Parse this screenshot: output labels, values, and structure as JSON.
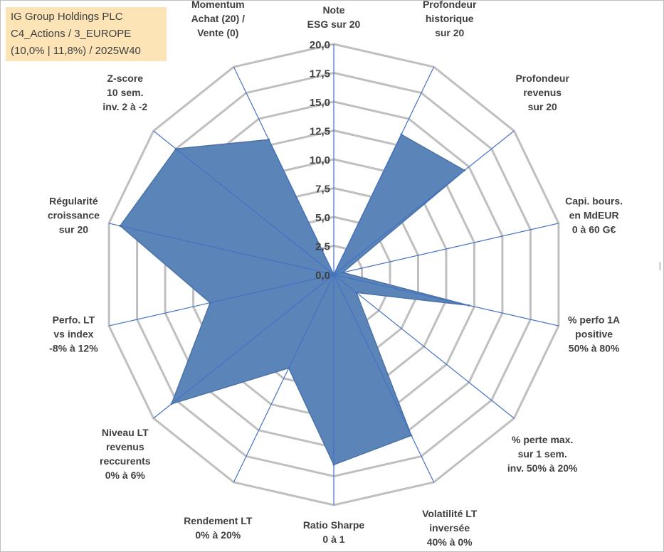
{
  "title_box": {
    "line1": "IG Group Holdings PLC",
    "line2": "C4_Actions / 3_EUROPE",
    "line3": "(10,0% | 11,8%) / 2025W40"
  },
  "chart_data": {
    "type": "radar",
    "title": "IG Group Holdings PLC",
    "rmin": 0,
    "rmax": 20,
    "ticks": [
      "0,0",
      "2,5",
      "5,0",
      "7,5",
      "10,0",
      "12,5",
      "15,0",
      "17,5",
      "20,0"
    ],
    "tick_values": [
      0,
      2.5,
      5,
      7.5,
      10,
      12.5,
      15,
      17.5,
      20
    ],
    "grid": true,
    "colors": {
      "fill": "#5b84b8",
      "stroke": "#4a72a8",
      "spoke": "#4472c4",
      "grid": "#bfbfbf"
    },
    "axes": [
      {
        "lines": [
          "Note",
          "ESG sur 20"
        ],
        "value": 0
      },
      {
        "lines": [
          "Profondeur",
          "historique",
          "sur 20"
        ],
        "value": 13.5
      },
      {
        "lines": [
          "Profondeur",
          "revenus",
          "sur 20"
        ],
        "value": 14.5
      },
      {
        "lines": [
          "Capi. bours.",
          "en MdEUR",
          "0 à 60 G€"
        ],
        "value": 0.8
      },
      {
        "lines": [
          "% perfo 1A",
          "positive",
          "50% à 80%"
        ],
        "value": 12
      },
      {
        "lines": [
          "% perte max.",
          "sur 1 sem.",
          "inv. 50% à 20%"
        ],
        "value": 2.5
      },
      {
        "lines": [
          "Volatilité LT",
          "inversée",
          "40% à 0%"
        ],
        "value": 15.5
      },
      {
        "lines": [
          "Ratio Sharpe",
          "0 à 1"
        ],
        "value": 16.5
      },
      {
        "lines": [
          "Rendement LT",
          "0% à 20%"
        ],
        "value": 9
      },
      {
        "lines": [
          "Niveau LT",
          "revenus",
          "reccurents",
          "0% à 6%"
        ],
        "value": 18
      },
      {
        "lines": [
          "Perfo. LT",
          "vs index",
          "-8% à 12%"
        ],
        "value": 11
      },
      {
        "lines": [
          "Régularité",
          "croissance",
          "sur 20"
        ],
        "value": 19
      },
      {
        "lines": [
          "Z-score",
          "10 sem.",
          "inv. 2 à -2"
        ],
        "value": 17.5
      },
      {
        "lines": [
          "Momentum",
          "Achat (20) /",
          "Vente (0)"
        ],
        "value": 13
      }
    ]
  }
}
